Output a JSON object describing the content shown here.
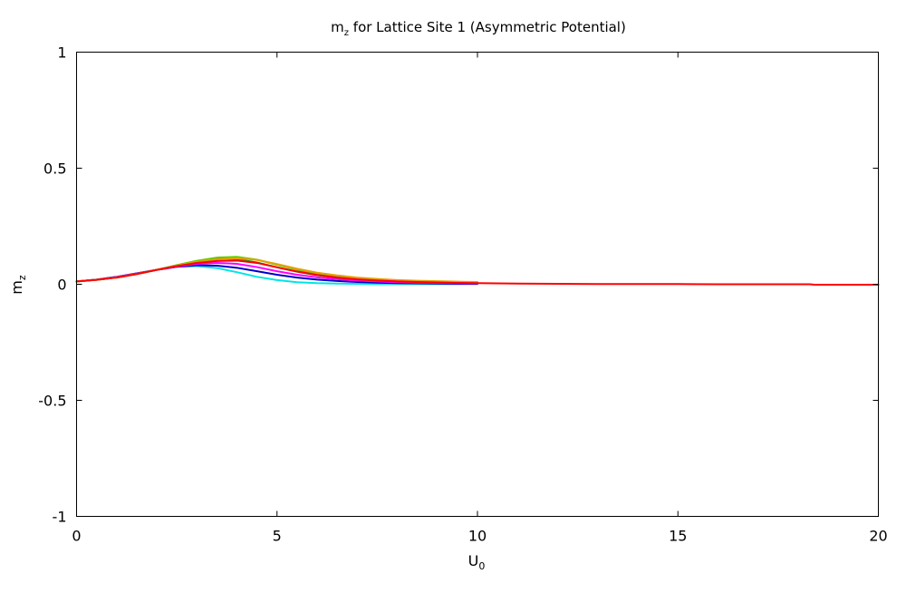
{
  "chart_data": {
    "type": "line",
    "title": {
      "main": "m",
      "sub": "z",
      "rest": " for Lattice Site 1 (Asymmetric Potential)"
    },
    "xlabel": {
      "main": "U",
      "sub": "0"
    },
    "ylabel": {
      "main": "m",
      "sub": "z"
    },
    "xlim": [
      0,
      20
    ],
    "ylim": [
      -1,
      1
    ],
    "xticks": [
      0,
      5,
      10,
      15,
      20
    ],
    "xtick_labels": [
      "0",
      "5",
      "10",
      "15",
      "20"
    ],
    "yticks": [
      -1,
      -0.5,
      0,
      0.5,
      1
    ],
    "ytick_labels": [
      "-1",
      "-0.5",
      "0",
      "0.5",
      "1"
    ],
    "grid": false,
    "series": [
      {
        "color": "#00e5e5",
        "x": [
          0,
          0.5,
          1,
          1.5,
          2,
          2.5,
          3,
          3.5,
          4,
          4.5,
          5,
          5.5,
          6,
          6.5,
          7,
          7.5,
          8,
          8.5,
          9,
          9.5,
          10
        ],
        "y": [
          0.012,
          0.02,
          0.032,
          0.047,
          0.062,
          0.075,
          0.078,
          0.07,
          0.052,
          0.032,
          0.018,
          0.009,
          0.005,
          0.003,
          0.002,
          0.001,
          0.001,
          0.001,
          0.001,
          0.001,
          0.001
        ]
      },
      {
        "color": "#0000c8",
        "x": [
          0,
          0.5,
          1,
          1.5,
          2,
          2.5,
          3,
          3.5,
          4,
          4.5,
          5,
          5.5,
          6,
          6.5,
          7,
          7.5,
          8,
          8.5,
          9,
          9.5,
          10
        ],
        "y": [
          0.012,
          0.02,
          0.032,
          0.047,
          0.062,
          0.075,
          0.082,
          0.08,
          0.071,
          0.056,
          0.041,
          0.029,
          0.02,
          0.014,
          0.01,
          0.007,
          0.005,
          0.004,
          0.003,
          0.002,
          0.002
        ]
      },
      {
        "color": "#ff00ff",
        "x": [
          0,
          0.5,
          1,
          1.5,
          2,
          2.5,
          3,
          3.5,
          4,
          4.5,
          5,
          5.5,
          6,
          6.5,
          7,
          7.5,
          8,
          8.5,
          9,
          9.5,
          10
        ],
        "y": [
          0.012,
          0.02,
          0.031,
          0.046,
          0.062,
          0.076,
          0.088,
          0.092,
          0.088,
          0.074,
          0.056,
          0.041,
          0.03,
          0.022,
          0.016,
          0.012,
          0.009,
          0.007,
          0.006,
          0.005,
          0.004
        ]
      },
      {
        "color": "#228b22",
        "x": [
          0,
          0.5,
          1,
          1.5,
          2,
          2.5,
          3,
          3.5,
          4,
          4.5,
          5,
          5.5,
          6,
          6.5,
          7,
          7.5,
          8,
          8.5,
          9,
          9.5,
          10
        ],
        "y": [
          0.012,
          0.019,
          0.029,
          0.044,
          0.062,
          0.082,
          0.1,
          0.11,
          0.108,
          0.094,
          0.073,
          0.054,
          0.039,
          0.029,
          0.022,
          0.017,
          0.013,
          0.011,
          0.009,
          0.008,
          0.007
        ]
      },
      {
        "color": "#66cc00",
        "x": [
          0,
          0.5,
          1,
          1.5,
          2,
          2.5,
          3,
          3.5,
          4,
          4.5,
          5,
          5.5,
          6,
          6.5,
          7,
          7.5,
          8,
          8.5,
          9,
          9.5,
          10
        ],
        "y": [
          0.012,
          0.019,
          0.029,
          0.044,
          0.062,
          0.082,
          0.101,
          0.115,
          0.118,
          0.106,
          0.084,
          0.063,
          0.046,
          0.034,
          0.026,
          0.02,
          0.016,
          0.013,
          0.011,
          0.009,
          0.008
        ]
      },
      {
        "color": "#e6a000",
        "x": [
          0,
          0.5,
          1,
          1.5,
          2,
          2.5,
          3,
          3.5,
          4,
          4.5,
          5,
          5.5,
          6,
          6.5,
          7,
          7.5,
          8,
          8.5,
          9,
          9.5,
          10
        ],
        "y": [
          0.012,
          0.019,
          0.029,
          0.044,
          0.062,
          0.08,
          0.096,
          0.107,
          0.112,
          0.105,
          0.087,
          0.067,
          0.05,
          0.038,
          0.029,
          0.023,
          0.018,
          0.015,
          0.013,
          0.011,
          0.01
        ]
      },
      {
        "color": "#ff0000",
        "x": [
          0,
          0.5,
          1,
          1.5,
          2,
          2.5,
          3,
          3.5,
          4,
          4.5,
          5,
          5.5,
          6,
          6.5,
          7,
          7.5,
          8,
          8.5,
          9,
          9.5,
          10,
          11,
          12,
          13,
          14,
          15,
          16,
          17,
          18,
          18.3,
          18.4,
          19,
          20
        ],
        "y": [
          0.012,
          0.019,
          0.029,
          0.044,
          0.062,
          0.078,
          0.092,
          0.1,
          0.102,
          0.092,
          0.073,
          0.055,
          0.04,
          0.029,
          0.021,
          0.016,
          0.012,
          0.01,
          0.008,
          0.006,
          0.005,
          0.003,
          0.002,
          0.001,
          0.001,
          0.001,
          0.0,
          0.0,
          0.0,
          0.0,
          -0.002,
          -0.002,
          -0.002
        ]
      }
    ]
  }
}
